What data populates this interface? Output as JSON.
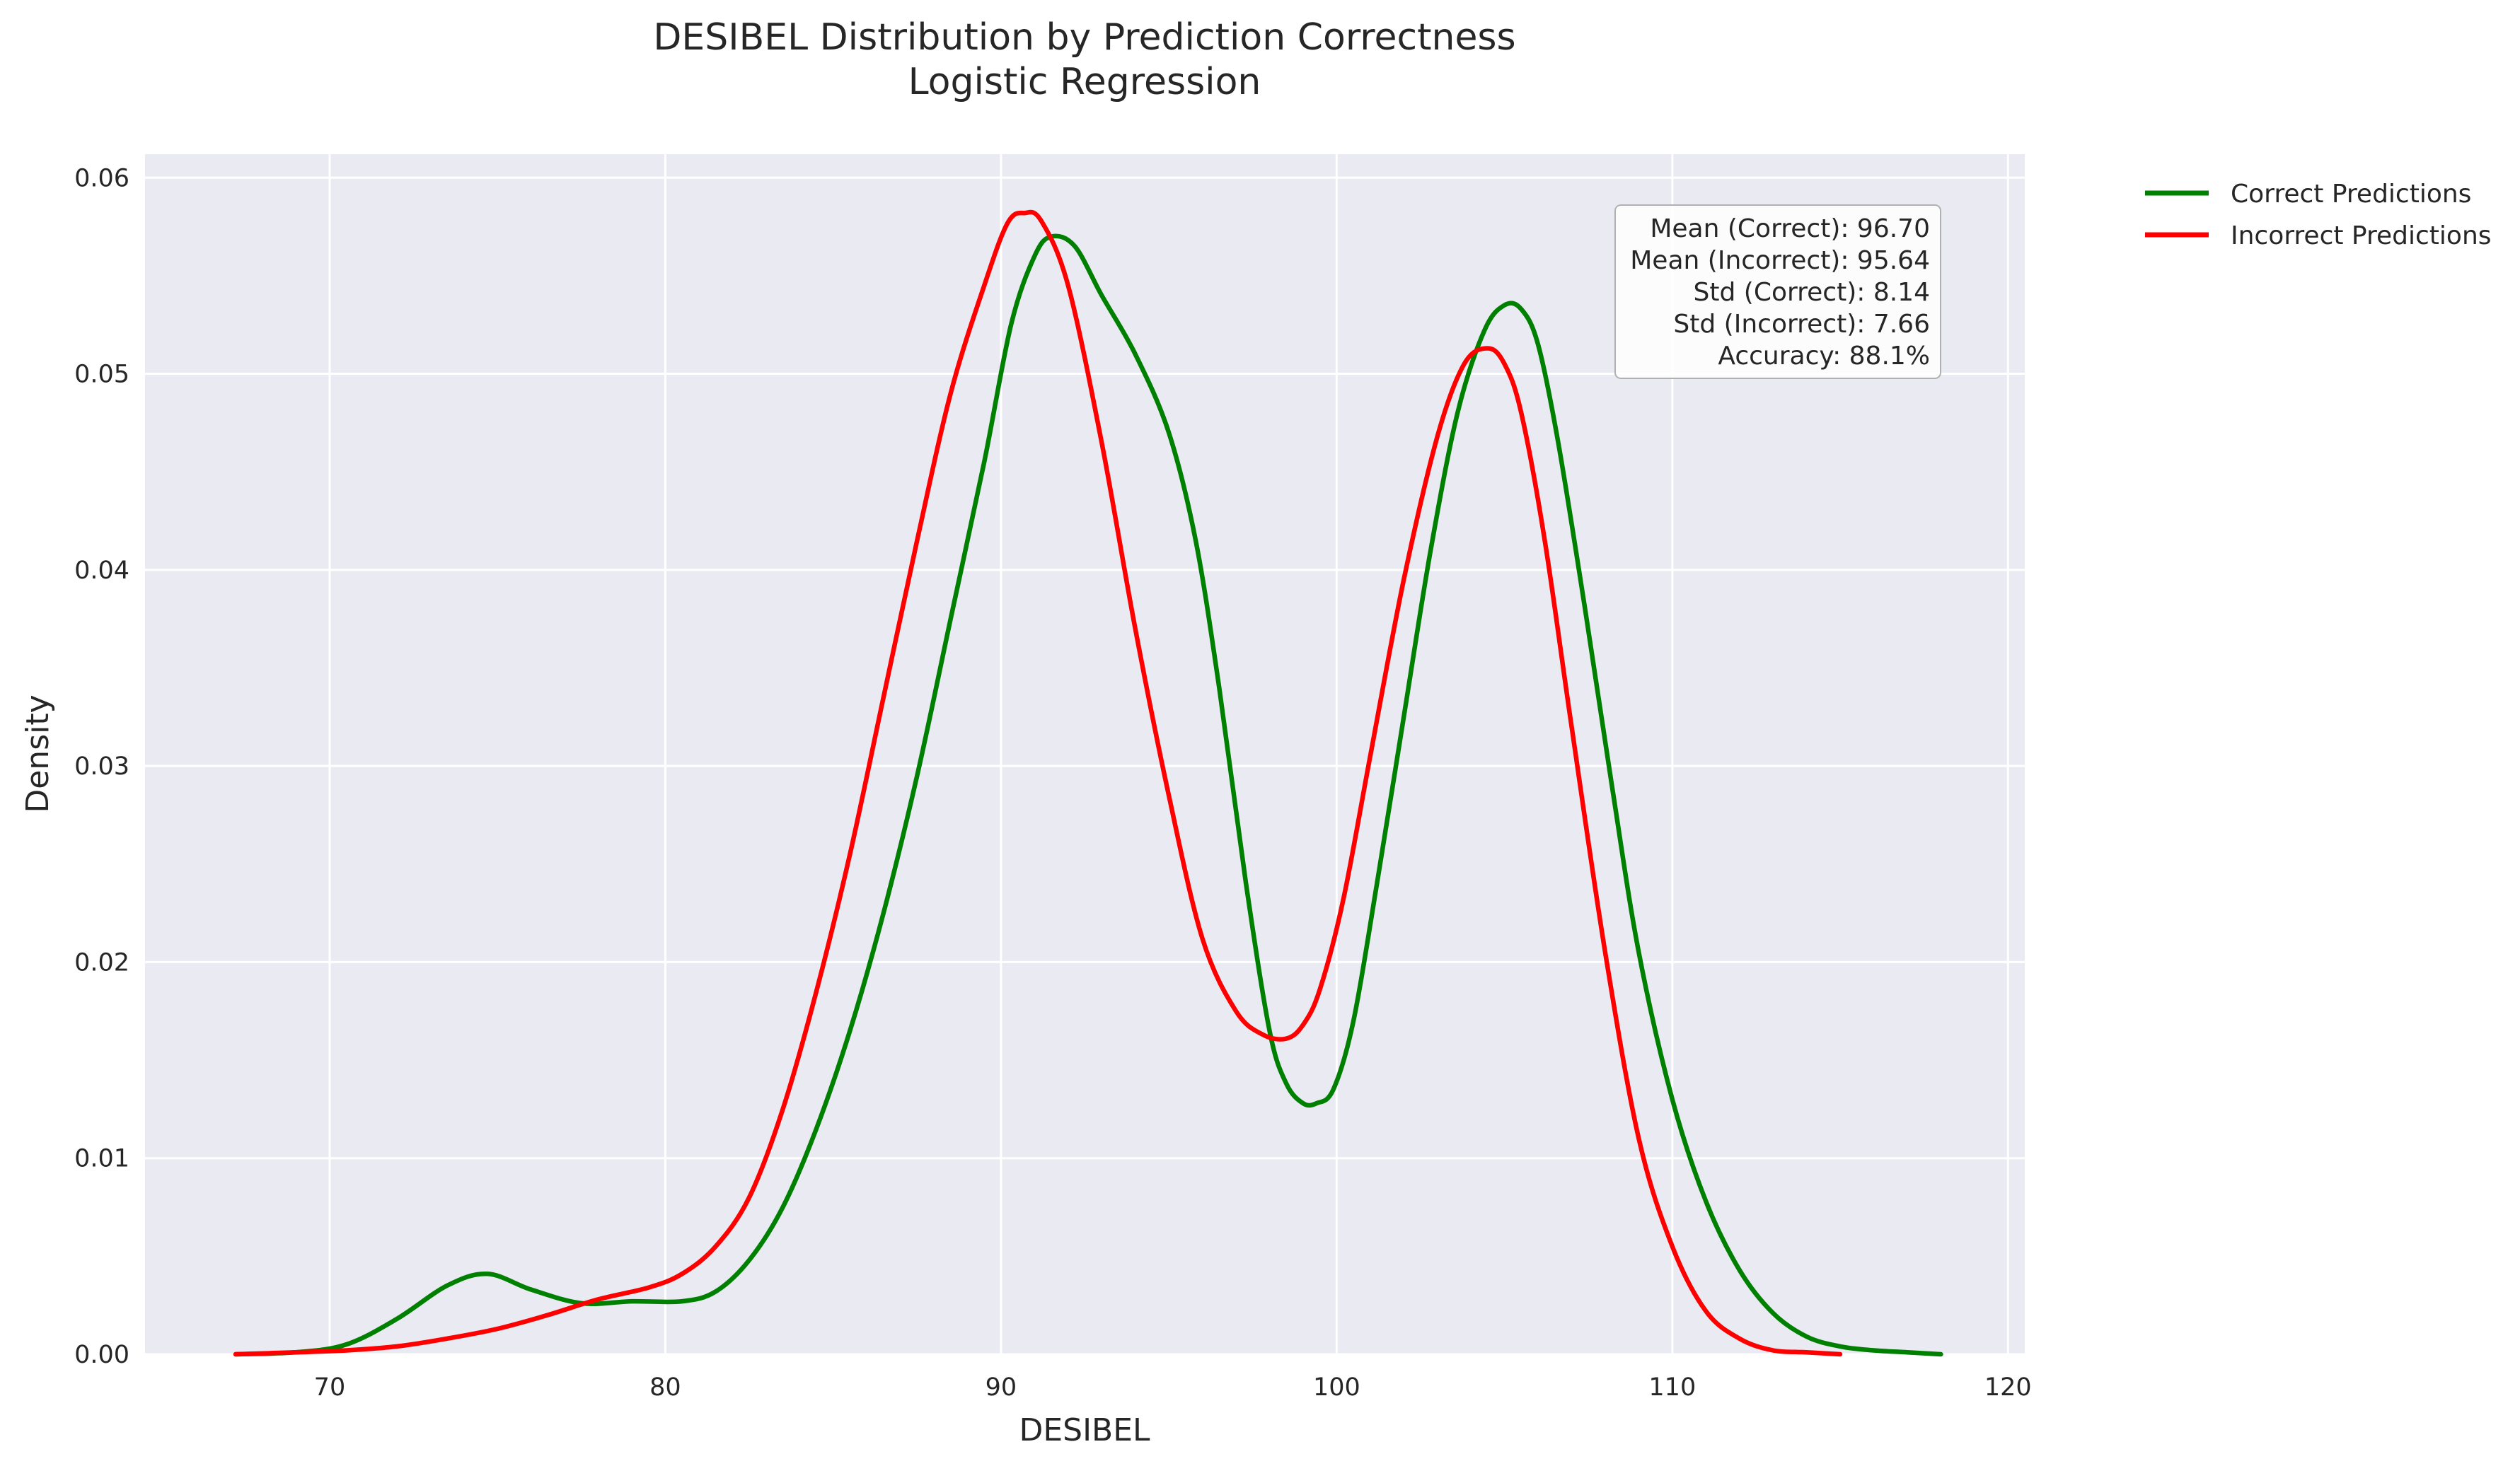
{
  "chart_data": {
    "type": "line",
    "title": "DESIBEL Distribution by Prediction Correctness",
    "subtitle": "Logistic Regression",
    "xlabel": "DESIBEL",
    "ylabel": "Density",
    "xlim": [
      64.5,
      120.5
    ],
    "ylim": [
      0,
      0.0612
    ],
    "grid": true,
    "xticks": [
      70,
      80,
      90,
      100,
      110,
      120
    ],
    "xtick_labels": [
      "70",
      "80",
      "90",
      "100",
      "110",
      "120"
    ],
    "yticks": [
      0,
      0.01,
      0.02,
      0.03,
      0.04,
      0.05,
      0.06
    ],
    "ytick_labels": [
      "0.00",
      "0.01",
      "0.02",
      "0.03",
      "0.04",
      "0.05",
      "0.06"
    ],
    "legend_position": "outside-top-right",
    "series": [
      {
        "name": "Correct Predictions",
        "color": "#008000",
        "x": [
          67.2,
          69.0,
          70.5,
          72.0,
          73.5,
          74.7,
          76.0,
          77.5,
          79.0,
          80.5,
          81.5,
          82.5,
          83.5,
          84.5,
          85.5,
          86.5,
          87.5,
          88.5,
          89.5,
          90.3,
          91.0,
          91.5,
          92.2,
          93.0,
          94.0,
          95.0,
          95.8,
          96.5,
          97.3,
          98.0,
          98.5,
          99.0,
          99.4,
          99.9,
          100.5,
          101.2,
          102.0,
          102.8,
          103.6,
          104.4,
          105.0,
          105.5,
          106.0,
          106.6,
          107.4,
          108.2,
          109.0,
          110.0,
          111.0,
          112.0,
          113.0,
          114.0,
          115.0,
          116.0,
          117.0,
          118.0
        ],
        "y": [
          0.0,
          0.0001,
          0.0005,
          0.0018,
          0.0035,
          0.0041,
          0.0033,
          0.0026,
          0.0027,
          0.0027,
          0.0032,
          0.0048,
          0.0075,
          0.0115,
          0.0165,
          0.0225,
          0.0295,
          0.0375,
          0.0455,
          0.0525,
          0.056,
          0.057,
          0.0565,
          0.054,
          0.051,
          0.047,
          0.0415,
          0.034,
          0.024,
          0.0165,
          0.0138,
          0.0128,
          0.0128,
          0.0135,
          0.017,
          0.024,
          0.0325,
          0.041,
          0.048,
          0.0522,
          0.0535,
          0.0533,
          0.0515,
          0.0465,
          0.038,
          0.029,
          0.0205,
          0.013,
          0.0078,
          0.0043,
          0.0021,
          0.0009,
          0.0004,
          0.0002,
          0.0001,
          0.0
        ]
      },
      {
        "name": "Incorrect Predictions",
        "color": "#ff0000",
        "x": [
          67.2,
          69.0,
          70.5,
          72.0,
          73.5,
          75.0,
          76.5,
          78.0,
          79.5,
          80.5,
          81.5,
          82.5,
          83.5,
          84.5,
          85.5,
          86.5,
          87.5,
          88.5,
          89.5,
          90.2,
          90.7,
          91.2,
          92.0,
          93.0,
          94.0,
          95.0,
          96.0,
          97.0,
          97.8,
          98.5,
          99.0,
          99.5,
          100.2,
          101.0,
          102.0,
          103.0,
          103.8,
          104.5,
          105.0,
          105.5,
          106.2,
          107.0,
          108.0,
          109.0,
          110.0,
          111.0,
          112.0,
          113.0,
          114.0,
          115.0
        ],
        "y": [
          0.0,
          0.0001,
          0.0002,
          0.0004,
          0.0008,
          0.0013,
          0.002,
          0.0028,
          0.0034,
          0.0041,
          0.0055,
          0.008,
          0.0125,
          0.0185,
          0.0255,
          0.0335,
          0.0415,
          0.049,
          0.0545,
          0.0577,
          0.0582,
          0.0578,
          0.0545,
          0.0465,
          0.037,
          0.0285,
          0.0212,
          0.0175,
          0.0163,
          0.0161,
          0.0168,
          0.0186,
          0.0232,
          0.0305,
          0.0395,
          0.0468,
          0.0505,
          0.0513,
          0.0505,
          0.048,
          0.0415,
          0.032,
          0.0205,
          0.011,
          0.0055,
          0.0022,
          0.0008,
          0.0002,
          0.0001,
          0.0
        ]
      }
    ],
    "stats_box": {
      "lines": [
        "Mean (Correct): 96.70",
        "Mean (Incorrect): 95.64",
        "Std (Correct): 8.14",
        "Std (Incorrect): 7.66",
        "Accuracy: 88.1%"
      ]
    },
    "colors": {
      "plot_background": "#eaeaf2",
      "grid": "#ffffff",
      "text": "#262626"
    }
  }
}
